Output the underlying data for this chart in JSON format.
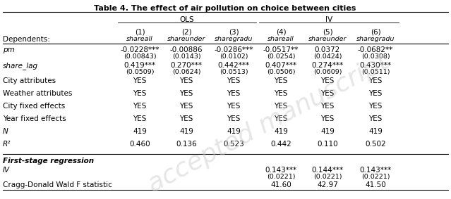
{
  "title": "Table 4. The effect of air pollution on choice between cities",
  "col_numbers": [
    "(1)",
    "(2)",
    "(3)",
    "(4)",
    "(5)",
    "(6)"
  ],
  "col_names": [
    "shareall",
    "shareunder",
    "sharegradu",
    "shareall",
    "shareunder",
    "sharegradu"
  ],
  "dependents_label": "Dependents:",
  "rows": [
    {
      "label": "pm",
      "italic": true,
      "values": [
        "-0.0228***",
        "-0.00886",
        "-0.0286***",
        "-0.0517**",
        "0.0372",
        "-0.0682**"
      ],
      "se": [
        "(0.00843)",
        "(0.0143)",
        "(0.0102)",
        "(0.0254)",
        "(0.0424)",
        "(0.0308)"
      ]
    },
    {
      "label": "share_lag",
      "italic": true,
      "values": [
        "0.419***",
        "0.270***",
        "0.442***",
        "0.407***",
        "0.274***",
        "0.430***"
      ],
      "se": [
        "(0.0509)",
        "(0.0624)",
        "(0.0513)",
        "(0.0506)",
        "(0.0609)",
        "(0.0511)"
      ]
    },
    {
      "label": "City attributes",
      "italic": false,
      "values": [
        "YES",
        "YES",
        "YES",
        "YES",
        "YES",
        "YES"
      ],
      "se": null
    },
    {
      "label": "Weather attributes",
      "italic": false,
      "values": [
        "YES",
        "YES",
        "YES",
        "YES",
        "YES",
        "YES"
      ],
      "se": null
    },
    {
      "label": "City fixed effects",
      "italic": false,
      "values": [
        "YES",
        "YES",
        "YES",
        "YES",
        "YES",
        "YES"
      ],
      "se": null
    },
    {
      "label": "Year fixed effects",
      "italic": false,
      "values": [
        "YES",
        "YES",
        "YES",
        "YES",
        "YES",
        "YES"
      ],
      "se": null
    },
    {
      "label": "N",
      "italic": true,
      "values": [
        "419",
        "419",
        "419",
        "419",
        "419",
        "419"
      ],
      "se": null
    },
    {
      "label": "R²",
      "italic": true,
      "values": [
        "0.460",
        "0.136",
        "0.523",
        "0.442",
        "0.110",
        "0.502"
      ],
      "se": null
    }
  ],
  "first_stage_label": "First-stage regression",
  "iv_values": [
    "",
    "",
    "",
    "0.143***",
    "0.144***",
    "0.143***"
  ],
  "iv_se": [
    "",
    "",
    "",
    "(0.0221)",
    "(0.0221)",
    "(0.0221)"
  ],
  "cd_values": [
    "",
    "",
    "",
    "41.60",
    "42.97",
    "41.50"
  ],
  "cd_label": "Cragg-Donald Wald F statistic",
  "watermark": "accepted manuscript",
  "bg_color": "#ffffff",
  "text_color": "#000000",
  "fs_title": 8.0,
  "fs_header": 7.5,
  "fs_data": 7.5,
  "fs_se": 6.8
}
